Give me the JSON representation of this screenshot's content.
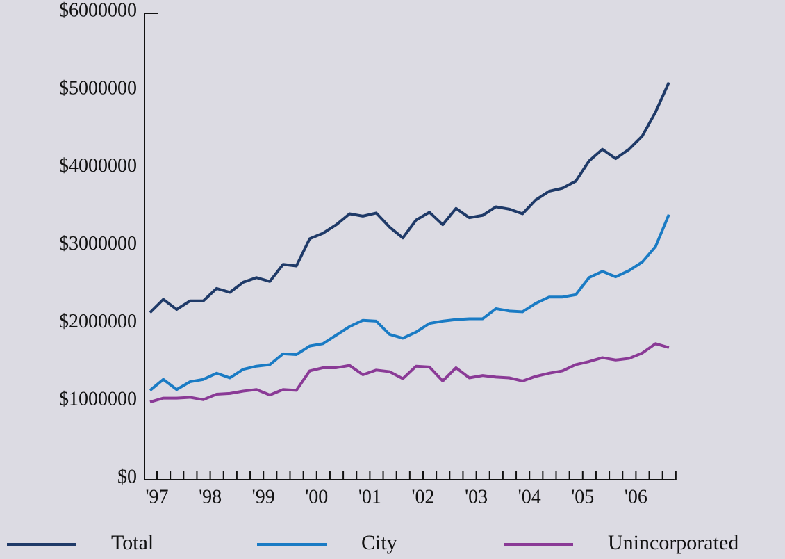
{
  "chart_data": {
    "type": "line",
    "categories": [
      "'97",
      null,
      null,
      null,
      "'98",
      null,
      null,
      null,
      "'99",
      null,
      null,
      null,
      "'00",
      null,
      null,
      null,
      "'01",
      null,
      null,
      null,
      "'02",
      null,
      null,
      null,
      "'03",
      null,
      null,
      null,
      "'04",
      null,
      null,
      null,
      "'05",
      null,
      null,
      null,
      "'06",
      null,
      null,
      null
    ],
    "series": [
      {
        "name": "Total",
        "color": "#1f3a68",
        "values": [
          2150000,
          2320000,
          2190000,
          2300000,
          2300000,
          2460000,
          2410000,
          2540000,
          2600000,
          2550000,
          2770000,
          2750000,
          3100000,
          3170000,
          3280000,
          3420000,
          3390000,
          3430000,
          3250000,
          3110000,
          3340000,
          3440000,
          3280000,
          3490000,
          3370000,
          3400000,
          3510000,
          3480000,
          3420000,
          3600000,
          3710000,
          3750000,
          3840000,
          4100000,
          4250000,
          4130000,
          4250000,
          4420000,
          4730000,
          5110000
        ]
      },
      {
        "name": "City",
        "color": "#1a7bc4",
        "values": [
          1150000,
          1290000,
          1160000,
          1260000,
          1290000,
          1370000,
          1310000,
          1420000,
          1460000,
          1480000,
          1620000,
          1610000,
          1720000,
          1750000,
          1860000,
          1970000,
          2050000,
          2040000,
          1870000,
          1820000,
          1900000,
          2010000,
          2040000,
          2060000,
          2070000,
          2070000,
          2200000,
          2170000,
          2160000,
          2270000,
          2350000,
          2350000,
          2380000,
          2600000,
          2680000,
          2610000,
          2690000,
          2800000,
          3000000,
          3410000
        ]
      },
      {
        "name": "Unincorporated",
        "color": "#8a3a96",
        "values": [
          1000000,
          1050000,
          1050000,
          1060000,
          1030000,
          1100000,
          1110000,
          1140000,
          1160000,
          1090000,
          1160000,
          1150000,
          1400000,
          1440000,
          1440000,
          1470000,
          1350000,
          1410000,
          1390000,
          1300000,
          1460000,
          1450000,
          1270000,
          1440000,
          1310000,
          1340000,
          1320000,
          1310000,
          1270000,
          1330000,
          1370000,
          1400000,
          1480000,
          1520000,
          1570000,
          1540000,
          1560000,
          1630000,
          1750000,
          1700000
        ]
      }
    ],
    "ylim": [
      0,
      6000000
    ],
    "yticks": [
      {
        "value": 0,
        "label": "$0"
      },
      {
        "value": 1000000,
        "label": "$1000000"
      },
      {
        "value": 2000000,
        "label": "$2000000"
      },
      {
        "value": 3000000,
        "label": "$3000000"
      },
      {
        "value": 4000000,
        "label": "$4000000"
      },
      {
        "value": 5000000,
        "label": "$5000000"
      },
      {
        "value": 6000000,
        "label": "$6000000"
      }
    ],
    "legend": "bottom"
  }
}
